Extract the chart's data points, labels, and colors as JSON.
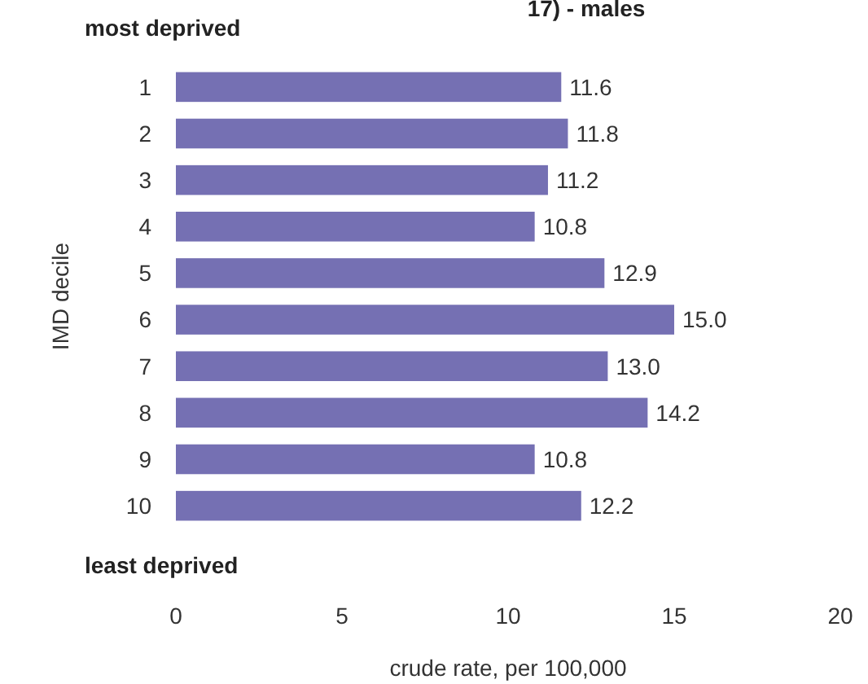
{
  "chart_data": {
    "type": "bar",
    "orientation": "horizontal",
    "title": "17) - males",
    "xlabel": "crude rate, per 100,000",
    "ylabel": "IMD decile",
    "categories": [
      "1",
      "2",
      "3",
      "4",
      "5",
      "6",
      "7",
      "8",
      "9",
      "10"
    ],
    "values": [
      11.6,
      11.8,
      11.2,
      10.8,
      12.9,
      15.0,
      13.0,
      14.2,
      10.8,
      12.2
    ],
    "value_labels": [
      "11.6",
      "11.8",
      "11.2",
      "10.8",
      "12.9",
      "15.0",
      "13.0",
      "14.2",
      "10.8",
      "12.2"
    ],
    "color": "#7570b3",
    "xlim": [
      0,
      20
    ],
    "xticks": [
      0,
      5,
      10,
      15,
      20
    ],
    "grid": false,
    "annotations": [
      "most deprived",
      "least deprived"
    ]
  }
}
